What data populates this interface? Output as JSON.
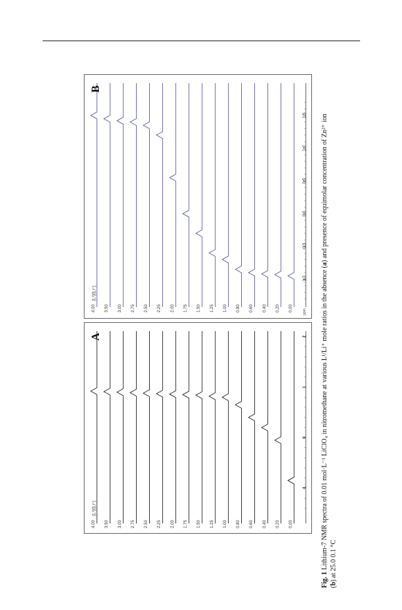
{
  "panels": [
    {
      "id": "A",
      "label": "A",
      "legend": "[L¹]/[Li⁺]",
      "ratios": [
        "4.00",
        "3.50",
        "3.00",
        "2.75",
        "2.50",
        "2.25",
        "2.00",
        "1.75",
        "1.50",
        "1.25",
        "1.00",
        "0.80",
        "0.60",
        "0.40",
        "0.20",
        "0.00"
      ],
      "shifts": [
        0.92,
        0.91,
        0.9,
        0.89,
        0.88,
        0.87,
        0.86,
        0.85,
        0.84,
        0.82,
        0.8,
        0.65,
        0.4,
        0.2,
        -0.05,
        -0.85
      ],
      "xticks": [
        "2",
        "1",
        "0",
        "-1"
      ],
      "line_color": "#222222"
    },
    {
      "id": "B",
      "label": "B",
      "legend": "[L¹]/[Li⁺]",
      "ratios": [
        "4.00",
        "3.50",
        "3.00",
        "2.75",
        "2.50",
        "2.25",
        "2.00",
        "1.75",
        "1.50",
        "1.25",
        "1.00",
        "0.80",
        "0.60",
        "0.40",
        "0.20",
        "0.00"
      ],
      "shifts": [
        1.5,
        1.45,
        1.42,
        1.4,
        1.35,
        1.2,
        0.55,
        0.0,
        -0.3,
        -0.6,
        -0.7,
        -0.85,
        -0.9,
        -0.92,
        -0.93,
        -0.95
      ],
      "xticks": [
        "1.5",
        "1.0",
        "0.5",
        "0.0",
        "-0.5",
        "-1.0"
      ],
      "xunit": "ppm",
      "line_color": "#5a5aa8"
    }
  ],
  "caption": {
    "fig_label": "Fig. 1",
    "text1": "  Lithium-7 NMR spectra of 0.01 mol·L⁻¹ LiClO₄ in nitromethane at various L¹/Li⁺ mole ratios in the absence (",
    "a": "a",
    "text2": ") and presence of equimolar concentration of Zn²⁺ ion",
    "b_open": "(",
    "b": "b",
    "text3": ") at 25.0   0.1 °C"
  }
}
